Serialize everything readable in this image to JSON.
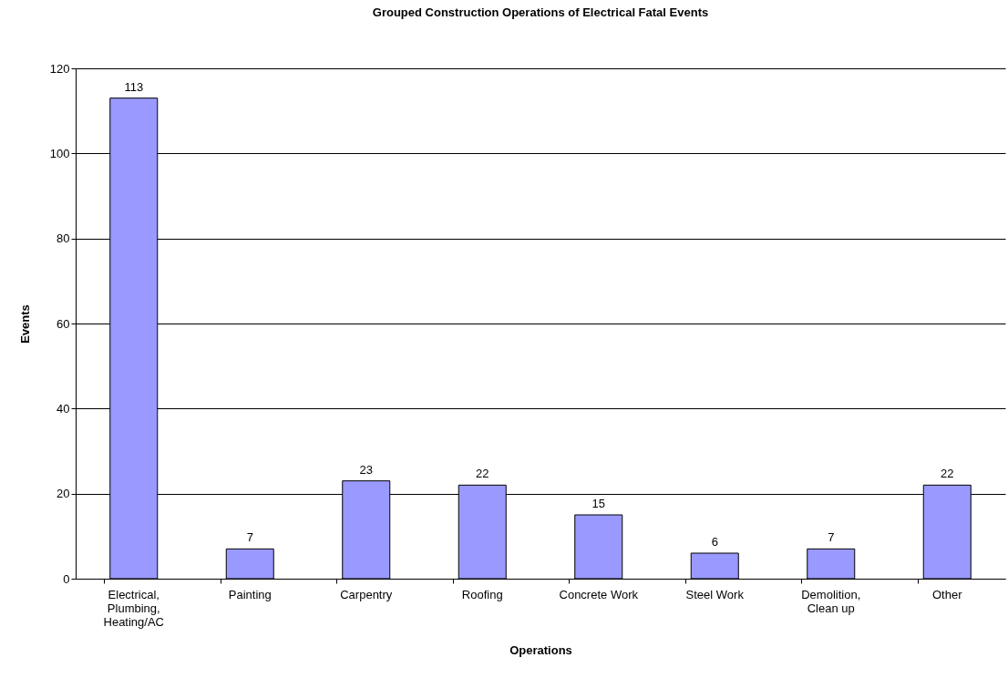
{
  "chart_data": {
    "type": "bar",
    "title": "Grouped Construction Operations of Electrical Fatal Events",
    "xlabel": "Operations",
    "ylabel": "Events",
    "categories": [
      "Electrical,\nPlumbing,\nHeating/AC",
      "Painting",
      "Carpentry",
      "Roofing",
      "Concrete Work",
      "Steel Work",
      "Demolition,\nClean up",
      "Other"
    ],
    "values": [
      113,
      7,
      23,
      22,
      15,
      6,
      7,
      22
    ],
    "color": "#9999ff",
    "ylim": [
      0,
      120
    ],
    "yticks": [
      0,
      20,
      40,
      60,
      80,
      100,
      120
    ],
    "grid": "y",
    "data_labels": true
  }
}
